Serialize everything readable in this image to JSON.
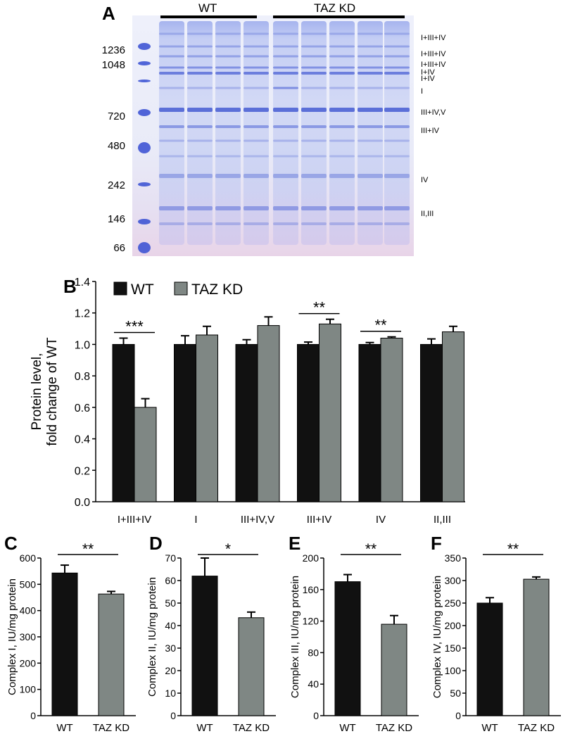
{
  "panels": {
    "a": "A",
    "b": "B",
    "c": "C",
    "d": "D",
    "e": "E",
    "f": "F"
  },
  "gel": {
    "group_wt": "WT",
    "group_kd": "TAZ KD",
    "markers": [
      "1236",
      "1048",
      "720",
      "480",
      "242",
      "146",
      "66"
    ],
    "band_labels": [
      "I+III+IV",
      "I+III+IV",
      "I+III+IV",
      "I+IV",
      "I+IV",
      "I",
      "III+IV,V",
      "III+IV",
      "IV",
      "II,III"
    ],
    "colors": {
      "background": "#f2f2fb",
      "band": "#5b6fd8",
      "bottom_tint": "#e7d2e8"
    }
  },
  "chart_data": [
    {
      "id": "B",
      "type": "bar",
      "ylabel": "Protein level, fold change of WT",
      "ylim": [
        0,
        1.4
      ],
      "yticks": [
        "0.0",
        "0.2",
        "0.4",
        "0.6",
        "0.8",
        "1.0",
        "1.2",
        "1.4"
      ],
      "categories": [
        "I+III+IV",
        "I",
        "III+IV,V",
        "III+IV",
        "IV",
        "II,III"
      ],
      "series": [
        {
          "name": "WT",
          "color": "#111111",
          "values": [
            1.0,
            1.0,
            1.0,
            1.0,
            1.0,
            1.0
          ],
          "errors": [
            0.04,
            0.055,
            0.03,
            0.015,
            0.012,
            0.035
          ]
        },
        {
          "name": "TAZ KD",
          "color": "#7f8784",
          "values": [
            0.6,
            1.06,
            1.12,
            1.13,
            1.04,
            1.08
          ],
          "errors": [
            0.055,
            0.055,
            0.055,
            0.03,
            0.008,
            0.035
          ]
        }
      ],
      "significance": [
        {
          "category": "I+III+IV",
          "label": "***"
        },
        {
          "category": "III+IV",
          "label": "**"
        },
        {
          "category": "IV",
          "label": "**"
        }
      ]
    },
    {
      "id": "C",
      "type": "bar",
      "ylabel": "Complex I, IU/mg protein",
      "ylim": [
        0,
        600
      ],
      "yticks": [
        "0",
        "100",
        "200",
        "300",
        "400",
        "500",
        "600"
      ],
      "categories": [
        "WT",
        "TAZ KD"
      ],
      "values": [
        543,
        463
      ],
      "errors": [
        30,
        10
      ],
      "colors": [
        "#111111",
        "#7f8784"
      ],
      "significance": "**"
    },
    {
      "id": "D",
      "type": "bar",
      "ylabel": "Complex II, IU/mg protein",
      "ylim": [
        0,
        70
      ],
      "yticks": [
        "0",
        "10",
        "20",
        "30",
        "40",
        "50",
        "60",
        "70"
      ],
      "categories": [
        "WT",
        "TAZ KD"
      ],
      "values": [
        62,
        43.5
      ],
      "errors": [
        8,
        2.5
      ],
      "colors": [
        "#111111",
        "#7f8784"
      ],
      "significance": "*"
    },
    {
      "id": "E",
      "type": "bar",
      "ylabel": "Complex III, IU/mg protein",
      "ylim": [
        0,
        200
      ],
      "yticks": [
        "0",
        "40",
        "80",
        "120",
        "160",
        "200"
      ],
      "categories": [
        "WT",
        "TAZ KD"
      ],
      "values": [
        170,
        116
      ],
      "errors": [
        9,
        11
      ],
      "colors": [
        "#111111",
        "#7f8784"
      ],
      "significance": "**"
    },
    {
      "id": "F",
      "type": "bar",
      "ylabel": "Complex IV, IU/mg protein",
      "ylim": [
        0,
        350
      ],
      "yticks": [
        "0",
        "50",
        "100",
        "150",
        "200",
        "250",
        "300",
        "350"
      ],
      "categories": [
        "WT",
        "TAZ KD"
      ],
      "values": [
        250,
        303
      ],
      "errors": [
        12,
        5
      ],
      "colors": [
        "#111111",
        "#7f8784"
      ],
      "significance": "**"
    }
  ]
}
